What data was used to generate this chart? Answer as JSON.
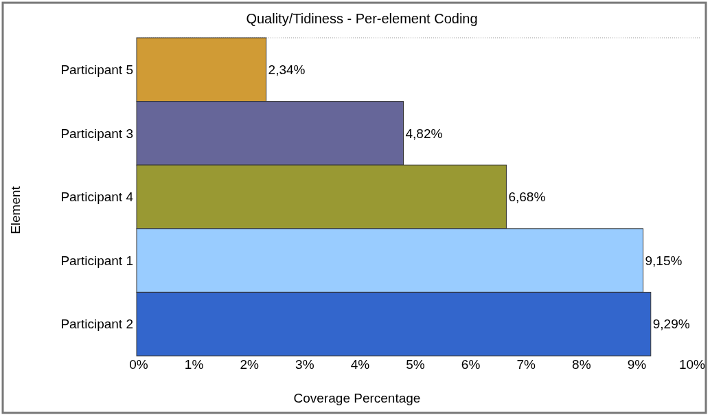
{
  "chart_data": {
    "type": "bar",
    "orientation": "horizontal",
    "title": "Quality/Tidiness - Per-element Coding",
    "xlabel": "Coverage Percentage",
    "ylabel": "Element",
    "categories": [
      "Participant 5",
      "Participant 3",
      "Participant 4",
      "Participant 1",
      "Participant 2"
    ],
    "values": [
      2.34,
      4.82,
      6.68,
      9.15,
      9.29
    ],
    "colors": [
      "#d09b35",
      "#666699",
      "#999933",
      "#99ccff",
      "#3366cc"
    ],
    "value_labels": [
      "2,34%",
      "4,82%",
      "6,68%",
      "9,15%",
      "9,29%"
    ],
    "xlim": [
      0,
      10
    ],
    "xticks": [
      {
        "value": 0,
        "label": "0%"
      },
      {
        "value": 1,
        "label": "1%"
      },
      {
        "value": 2,
        "label": "2%"
      },
      {
        "value": 3,
        "label": "3%"
      },
      {
        "value": 4,
        "label": "4%"
      },
      {
        "value": 5,
        "label": "5%"
      },
      {
        "value": 6,
        "label": "6%"
      },
      {
        "value": 7,
        "label": "7%"
      },
      {
        "value": 8,
        "label": "8%"
      },
      {
        "value": 9,
        "label": "9%"
      },
      {
        "value": 10,
        "label": "10%"
      }
    ],
    "grid": false
  }
}
